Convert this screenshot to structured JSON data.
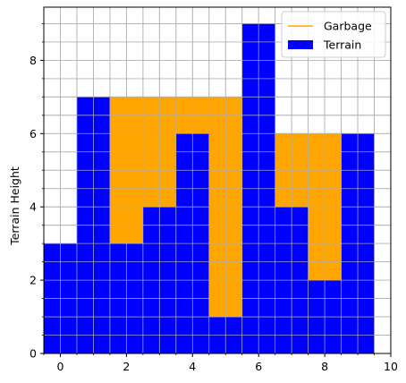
{
  "chart_data": {
    "type": "bar",
    "title": "",
    "xlabel": "",
    "ylabel": "Terrain Height",
    "x": [
      0,
      1,
      2,
      3,
      4,
      5,
      6,
      7,
      8,
      9
    ],
    "xlim": [
      -0.5,
      10
    ],
    "ylim": [
      0,
      9.45
    ],
    "xticks": [
      0,
      2,
      4,
      6,
      8,
      10
    ],
    "yticks": [
      0,
      2,
      4,
      6,
      8
    ],
    "minor_step": 0.5,
    "grid": true,
    "legend": "top-right",
    "series": [
      {
        "name": "Terrain",
        "kind": "bar",
        "color": "#0000ff",
        "base": [
          0,
          0,
          0,
          0,
          0,
          0,
          0,
          0,
          0,
          0
        ],
        "values": [
          3,
          7,
          3,
          4,
          6,
          1,
          9,
          4,
          2,
          6
        ]
      },
      {
        "name": "Garbage",
        "kind": "stack",
        "color": "#ffa500",
        "base": [
          3,
          7,
          3,
          4,
          6,
          1,
          9,
          4,
          2,
          6
        ],
        "values": [
          0,
          0,
          4,
          3,
          1,
          6,
          0,
          2,
          4,
          0
        ]
      }
    ]
  }
}
